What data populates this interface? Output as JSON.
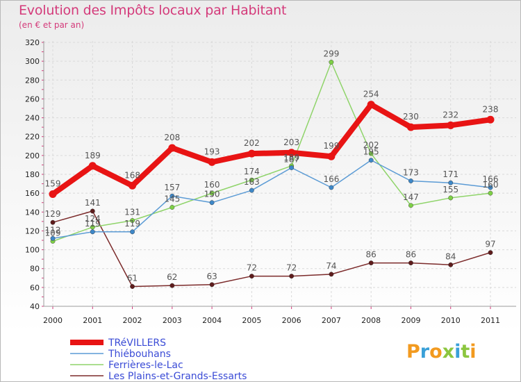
{
  "title": "Evolution des Impôts locaux par Habitant",
  "subtitle": "(en € et par an)",
  "logo": {
    "letters": [
      "P",
      "r",
      "o",
      "x",
      "i",
      "t",
      "i"
    ],
    "colors": [
      "#f29a1f",
      "#3aa0d8",
      "#f29a1f",
      "#8cc63f",
      "#3aa0d8",
      "#8cc63f",
      "#f29a1f"
    ]
  },
  "chart_data": {
    "type": "line",
    "title": "Evolution des Impôts locaux par Habitant",
    "subtitle": "(en € et par an)",
    "xlabel": "",
    "ylabel": "",
    "x": [
      "2000",
      "2001",
      "2002",
      "2003",
      "2004",
      "2005",
      "2006",
      "2007",
      "2008",
      "2009",
      "2010",
      "2011"
    ],
    "ylim": [
      40,
      320
    ],
    "yticks": [
      40,
      60,
      80,
      100,
      120,
      140,
      160,
      180,
      200,
      220,
      240,
      260,
      280,
      300,
      320
    ],
    "grid": true,
    "legend_position": "bottom-left",
    "series": [
      {
        "name": "TRéVILLERS",
        "color": "#e81414",
        "values": [
          159,
          189,
          168,
          208,
          193,
          202,
          203,
          199,
          254,
          230,
          232,
          238
        ],
        "labels": [
          "159",
          "189",
          "168",
          "208",
          "193",
          "202",
          "203",
          "199",
          "254",
          "230",
          "232",
          "238"
        ]
      },
      {
        "name": "Thiébouhans",
        "color": "#5b9bd5",
        "values": [
          112,
          119,
          119,
          157,
          150,
          163,
          187,
          166,
          195,
          173,
          171,
          166
        ],
        "labels": [
          "112",
          "119",
          "119",
          "157",
          "150",
          "163",
          "187",
          "166",
          "195",
          "173",
          "171",
          "166"
        ]
      },
      {
        "name": "Ferrières-le-Lac",
        "color": "#8fd46a",
        "values": [
          109,
          124,
          131,
          145,
          160,
          174,
          189,
          299,
          202,
          147,
          155,
          160
        ],
        "labels": [
          "109",
          "124",
          "131",
          "145",
          "160",
          "174",
          "189",
          "299",
          "202",
          "147",
          "155",
          "160"
        ]
      },
      {
        "name": "Les Plains-et-Grands-Essarts",
        "color": "#7b2a2a",
        "values": [
          129,
          141,
          61,
          62,
          63,
          72,
          72,
          74,
          86,
          86,
          84,
          97
        ],
        "labels": [
          "129",
          "141",
          "61",
          "62",
          "63",
          "72",
          "72",
          "74",
          "86",
          "86",
          "84",
          "97"
        ]
      }
    ]
  }
}
